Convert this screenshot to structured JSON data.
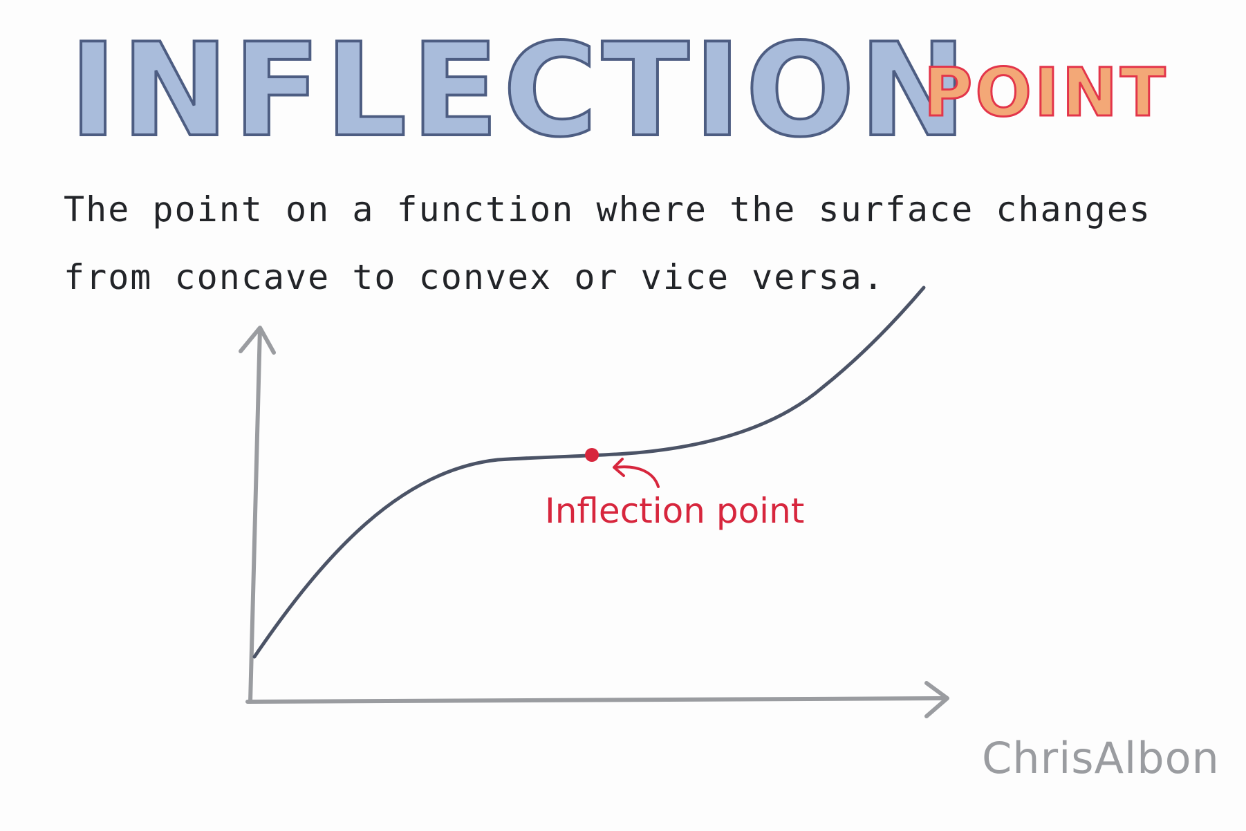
{
  "title": {
    "main": "INFLECTION",
    "sub": "POINT"
  },
  "definition": {
    "line1": "The point on a function where the surface changes",
    "line2": "from concave to convex or vice versa."
  },
  "annotation": {
    "label": "Inflection point"
  },
  "signature": "ChrisAlbon",
  "colors": {
    "title_fill": "#a9bcdb",
    "title_outline": "#4d5d82",
    "sub_fill": "#f3a877",
    "sub_outline": "#e3354a",
    "axis": "#9a9ca0",
    "curve": "#4b5366",
    "highlight": "#d7263d",
    "text": "#222428"
  },
  "icons": {
    "point_marker": "dot-icon",
    "pointer": "curved-arrow-icon"
  }
}
